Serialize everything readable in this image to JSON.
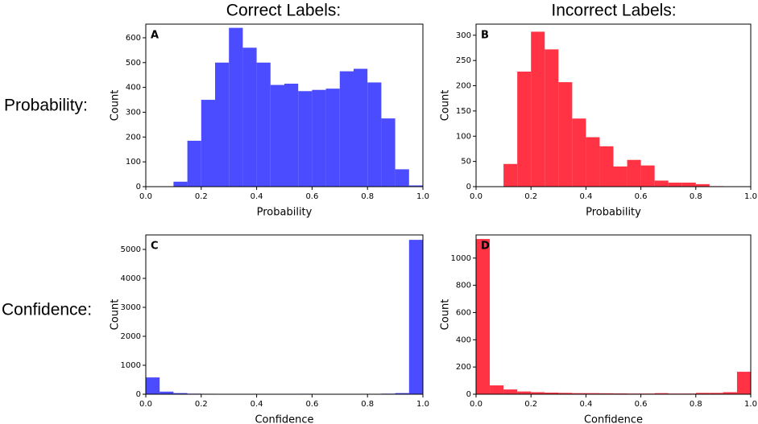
{
  "column_titles": [
    "Correct Labels:",
    "Incorrect Labels:"
  ],
  "row_titles": [
    "Probability:",
    "Confidence:"
  ],
  "chart_data": [
    {
      "type": "histogram",
      "panel_label": "A",
      "xlabel": "Probability",
      "ylabel": "Count",
      "color": "#4b4bff",
      "bins": [
        0.1,
        0.15,
        0.2,
        0.25,
        0.3,
        0.35,
        0.4,
        0.45,
        0.5,
        0.55,
        0.6,
        0.65,
        0.7,
        0.75,
        0.8,
        0.85,
        0.9,
        0.95,
        1.0
      ],
      "values": [
        20,
        185,
        350,
        500,
        640,
        560,
        500,
        410,
        415,
        385,
        390,
        395,
        465,
        475,
        420,
        275,
        70,
        5
      ],
      "xlim": [
        0,
        1
      ],
      "ylim": [
        0,
        655
      ],
      "xticks": [
        {
          "value": 0,
          "label": "0.0"
        },
        0.2,
        0.4,
        0.6,
        0.8,
        {
          "value": 1,
          "label": "1.0"
        }
      ],
      "yticks": [
        0,
        100,
        200,
        300,
        400,
        500,
        600
      ]
    },
    {
      "type": "histogram",
      "panel_label": "B",
      "xlabel": "Probability",
      "ylabel": "Count",
      "color": "#ff3344",
      "bins": [
        0.1,
        0.15,
        0.2,
        0.25,
        0.3,
        0.35,
        0.4,
        0.45,
        0.5,
        0.55,
        0.6,
        0.65,
        0.7,
        0.75,
        0.8,
        0.85,
        0.9
      ],
      "values": [
        45,
        228,
        307,
        272,
        207,
        135,
        98,
        80,
        40,
        53,
        42,
        12,
        8,
        8,
        5,
        1
      ],
      "xlim": [
        0,
        1
      ],
      "ylim": [
        0,
        322
      ],
      "xticks": [
        {
          "value": 0,
          "label": "0.0"
        },
        0.2,
        0.4,
        0.6,
        0.8,
        {
          "value": 1,
          "label": "1.0"
        }
      ],
      "yticks": [
        0,
        50,
        100,
        150,
        200,
        250,
        300
      ]
    },
    {
      "type": "histogram",
      "panel_label": "C",
      "xlabel": "Confidence",
      "ylabel": "Count",
      "color": "#4b4bff",
      "bins": [
        0,
        0.05,
        0.1,
        0.15,
        0.2,
        0.25,
        0.3,
        0.35,
        0.4,
        0.45,
        0.5,
        0.55,
        0.6,
        0.65,
        0.7,
        0.75,
        0.8,
        0.85,
        0.9,
        0.95,
        1.0
      ],
      "values": [
        580,
        90,
        40,
        20,
        15,
        10,
        5,
        5,
        5,
        5,
        5,
        15,
        5,
        5,
        5,
        5,
        10,
        20,
        40,
        5330
      ],
      "xlim": [
        0,
        1
      ],
      "ylim": [
        0,
        5500
      ],
      "xticks": [
        {
          "value": 0,
          "label": "0.0"
        },
        0.2,
        0.4,
        0.6,
        0.8,
        {
          "value": 1,
          "label": "1.0"
        }
      ],
      "yticks": [
        0,
        1000,
        2000,
        3000,
        4000,
        5000
      ]
    },
    {
      "type": "histogram",
      "panel_label": "D",
      "xlabel": "Confidence",
      "ylabel": "Count",
      "color": "#ff3344",
      "bins": [
        0,
        0.05,
        0.1,
        0.15,
        0.2,
        0.25,
        0.3,
        0.35,
        0.4,
        0.45,
        0.5,
        0.55,
        0.6,
        0.65,
        0.7,
        0.75,
        0.8,
        0.85,
        0.9,
        0.95,
        1.0
      ],
      "values": [
        1140,
        65,
        35,
        20,
        15,
        12,
        10,
        8,
        8,
        7,
        6,
        5,
        5,
        8,
        5,
        5,
        10,
        10,
        15,
        165
      ],
      "xlim": [
        0,
        1
      ],
      "ylim": [
        0,
        1170
      ],
      "xticks": [
        {
          "value": 0,
          "label": "0.0"
        },
        0.2,
        0.4,
        0.6,
        0.8,
        {
          "value": 1,
          "label": "1.0"
        }
      ],
      "yticks": [
        0,
        200,
        400,
        600,
        800,
        1000
      ]
    }
  ]
}
